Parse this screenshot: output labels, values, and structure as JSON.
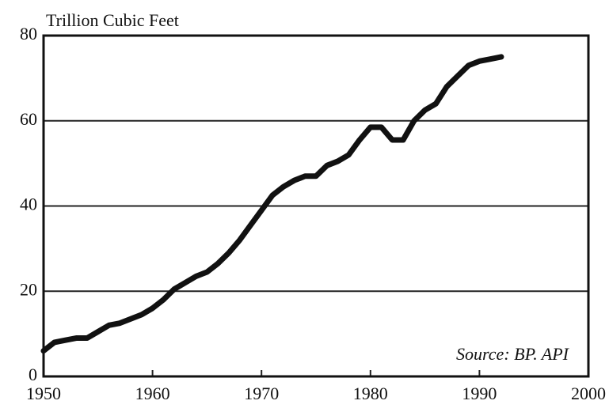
{
  "chart_data": {
    "type": "line",
    "y_axis_label": "Trillion Cubic Feet",
    "annotation": "Source: BP. API",
    "x": [
      1950,
      1951,
      1952,
      1953,
      1954,
      1955,
      1956,
      1957,
      1958,
      1959,
      1960,
      1961,
      1962,
      1963,
      1964,
      1965,
      1966,
      1967,
      1968,
      1969,
      1970,
      1971,
      1972,
      1973,
      1974,
      1975,
      1976,
      1977,
      1978,
      1979,
      1980,
      1981,
      1982,
      1983,
      1984,
      1985,
      1986,
      1987,
      1988,
      1989,
      1990,
      1991,
      1992
    ],
    "series": [
      {
        "color": "#111111",
        "values": [
          6,
          8,
          8.5,
          9,
          9,
          10.5,
          12,
          12.5,
          13.5,
          14.5,
          16,
          18,
          20.5,
          22,
          23.5,
          24.5,
          26.5,
          29,
          32,
          35.5,
          39,
          42.5,
          44.5,
          46,
          47,
          47,
          49.5,
          50.5,
          52,
          55.5,
          58.5,
          58.5,
          55.5,
          55.5,
          60,
          62.5,
          64,
          68,
          70.5,
          73,
          74,
          74.5,
          75
        ]
      }
    ],
    "xlim": [
      1950,
      2000
    ],
    "xticks": [
      1950,
      1960,
      1970,
      1980,
      1990,
      2000
    ],
    "ylim": [
      0,
      80
    ],
    "yticks": [
      0,
      20,
      40,
      60,
      80
    ],
    "grid": true
  }
}
